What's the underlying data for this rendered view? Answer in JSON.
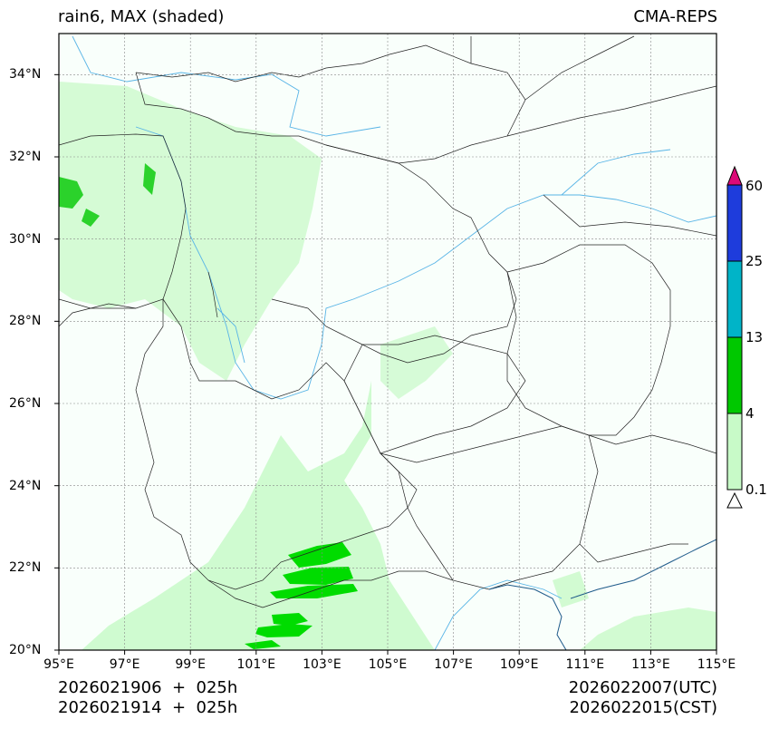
{
  "header": {
    "title_left": "rain6, MAX (shaded)",
    "title_right": "CMA-REPS"
  },
  "map": {
    "lon_range": [
      95,
      115
    ],
    "lat_range": [
      20,
      35
    ],
    "x_ticks": [
      "95°E",
      "97°E",
      "99°E",
      "101°E",
      "103°E",
      "105°E",
      "107°E",
      "109°E",
      "111°E",
      "113°E",
      "115°E"
    ],
    "y_ticks": [
      "20°N",
      "22°N",
      "24°N",
      "26°N",
      "28°N",
      "30°N",
      "32°N",
      "34°N"
    ],
    "colors": {
      "light_green": "#c8fac8",
      "green": "#00c800",
      "cyan": "#00b4c8",
      "blue": "#1e3cdc",
      "magenta": "#dc0a78",
      "river": "#58b4e6",
      "border": "#222222",
      "grid": "#888888"
    }
  },
  "colorbar": {
    "levels": [
      "0.1",
      "4",
      "13",
      "25",
      "60"
    ]
  },
  "footer": {
    "init_utc": "2026021906  +  025h",
    "init_cst": "2026021914  +  025h",
    "valid_utc": "2026022007(UTC)",
    "valid_cst": "2026022015(CST)"
  }
}
